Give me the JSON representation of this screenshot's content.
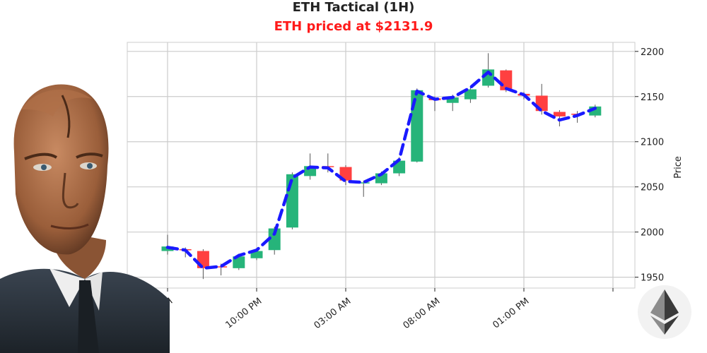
{
  "chart_data": {
    "type": "candlestick",
    "title": "ETH Tactical (1H)",
    "subtitle": "ETH priced at $2131.9",
    "ylabel": "Price",
    "xlabel": "",
    "ylim": [
      1938,
      2210
    ],
    "y_ticks": [
      1950,
      2000,
      2050,
      2100,
      2150,
      2200
    ],
    "x_tick_labels": [
      "05:00 PM",
      "10:00 PM",
      "03:00 AM",
      "08:00 AM",
      "01:00 PM"
    ],
    "grid": true,
    "colors": {
      "up": "#26b47a",
      "down": "#ff4040",
      "line": "#1a1aff",
      "title": "#222222",
      "subtitle": "#ff1a1a"
    },
    "candles": [
      {
        "open": 1979,
        "close": 1984,
        "high": 1997,
        "low": 1975
      },
      {
        "open": 1981,
        "close": 1980,
        "high": 1983,
        "low": 1972
      },
      {
        "open": 1979,
        "close": 1960,
        "high": 1981,
        "low": 1948
      },
      {
        "open": 1962,
        "close": 1961,
        "high": 1965,
        "low": 1952
      },
      {
        "open": 1960,
        "close": 1973,
        "high": 1976,
        "low": 1958
      },
      {
        "open": 1971,
        "close": 1979,
        "high": 1982,
        "low": 1969
      },
      {
        "open": 1980,
        "close": 2004,
        "high": 2006,
        "low": 1975
      },
      {
        "open": 2005,
        "close": 2064,
        "high": 2066,
        "low": 2003
      },
      {
        "open": 2062,
        "close": 2073,
        "high": 2087,
        "low": 2058
      },
      {
        "open": 2073,
        "close": 2072,
        "high": 2087,
        "low": 2066
      },
      {
        "open": 2072,
        "close": 2057,
        "high": 2074,
        "low": 2052
      },
      {
        "open": 2055,
        "close": 2055,
        "high": 2057,
        "low": 2039
      },
      {
        "open": 2054,
        "close": 2065,
        "high": 2067,
        "low": 2052
      },
      {
        "open": 2065,
        "close": 2079,
        "high": 2083,
        "low": 2062
      },
      {
        "open": 2078,
        "close": 2157,
        "high": 2159,
        "low": 2077
      },
      {
        "open": 2148,
        "close": 2146,
        "high": 2150,
        "low": 2134
      },
      {
        "open": 2143,
        "close": 2149,
        "high": 2152,
        "low": 2134
      },
      {
        "open": 2147,
        "close": 2158,
        "high": 2160,
        "low": 2143
      },
      {
        "open": 2162,
        "close": 2180,
        "high": 2198,
        "low": 2160
      },
      {
        "open": 2179,
        "close": 2157,
        "high": 2180,
        "low": 2155
      },
      {
        "open": 2153,
        "close": 2151,
        "high": 2155,
        "low": 2147
      },
      {
        "open": 2151,
        "close": 2134,
        "high": 2164,
        "low": 2130
      },
      {
        "open": 2133,
        "close": 2128,
        "high": 2135,
        "low": 2117
      },
      {
        "open": 2131,
        "close": 2130,
        "high": 2134,
        "low": 2121
      },
      {
        "open": 2129,
        "close": 2139,
        "high": 2141,
        "low": 2127
      }
    ],
    "trend_line": [
      1983,
      1980,
      1960,
      1962,
      1974,
      1980,
      1998,
      2060,
      2072,
      2071,
      2056,
      2055,
      2064,
      2080,
      2156,
      2147,
      2149,
      2160,
      2177,
      2159,
      2152,
      2134,
      2124,
      2129,
      2137
    ]
  },
  "avatar_icon": "robot-avatar",
  "logo_icon": "ethereum-logo-icon"
}
